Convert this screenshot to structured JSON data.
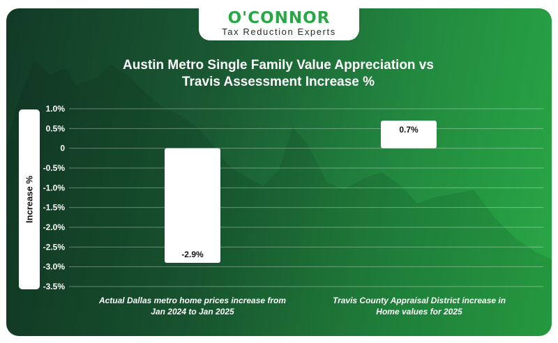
{
  "logo": {
    "name": "O'CONNOR",
    "tagline": "Tax Reduction Experts"
  },
  "colors": {
    "accent": "#27a845",
    "bar": "#ffffff",
    "dark_green": "#123a26"
  },
  "chart_data": {
    "type": "bar",
    "title": "Austin Metro Single Family Value Appreciation vs Travis Assessment Increase %",
    "title_lines": [
      "Austin Metro Single Family Value Appreciation vs",
      "Travis Assessment Increase %"
    ],
    "ylabel": "Increase %",
    "ylim": [
      -3.5,
      1.0
    ],
    "y_ticks": [
      1.0,
      0.5,
      0,
      -0.5,
      -1.0,
      -1.5,
      -2.0,
      -2.5,
      -3.0,
      -3.5
    ],
    "y_tick_labels": [
      "1.0%",
      "0.5%",
      "0",
      "-0.5%",
      "-1.0%",
      "-1.5%",
      "-2.0%",
      "-2.5%",
      "-3.0%",
      "-3.5%"
    ],
    "grid": true,
    "categories": [
      "Actual Dallas metro home prices increase from Jan 2024 to Jan 2025",
      "Travis County Appraisal District increase in Home values for 2025"
    ],
    "category_lines": [
      [
        "Actual Dallas metro home prices increase from",
        "Jan 2024 to Jan 2025"
      ],
      [
        "Travis County Appraisal District increase in",
        "Home values for 2025"
      ]
    ],
    "values": [
      -2.9,
      0.7
    ],
    "data_labels": [
      "-2.9%",
      "0.7%"
    ]
  }
}
